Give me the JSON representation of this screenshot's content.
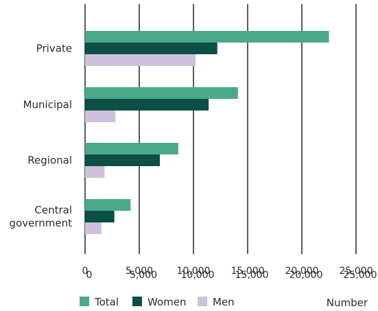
{
  "chart_data": {
    "type": "bar",
    "orientation": "horizontal",
    "categories": [
      "Private",
      "Municipal",
      "Regional",
      "Central government"
    ],
    "category_lines": [
      [
        "Private"
      ],
      [
        "Municipal"
      ],
      [
        "Regional"
      ],
      [
        "Central",
        "government"
      ]
    ],
    "series": [
      {
        "name": "Total",
        "color": "#4aa98b",
        "values": [
          22500,
          14100,
          8600,
          4200
        ]
      },
      {
        "name": "Women",
        "color": "#0b4f45",
        "values": [
          12200,
          11400,
          6900,
          2700
        ]
      },
      {
        "name": "Men",
        "color": "#cfc1db",
        "values": [
          10200,
          2800,
          1800,
          1500
        ]
      }
    ],
    "xlim": [
      0,
      25000
    ],
    "xticks": [
      0,
      5000,
      10000,
      15000,
      20000,
      25000
    ],
    "tick_labels_a": [
      "0",
      "5,000",
      "10,000",
      "15,000",
      "20,000",
      "25,000"
    ],
    "tick_labels_b": [
      "0",
      "5,000",
      "10,000",
      "15,000",
      "20,000",
      "25,000"
    ],
    "xlabel": "Number",
    "grid": "vertical",
    "legend_position": "bottom"
  }
}
